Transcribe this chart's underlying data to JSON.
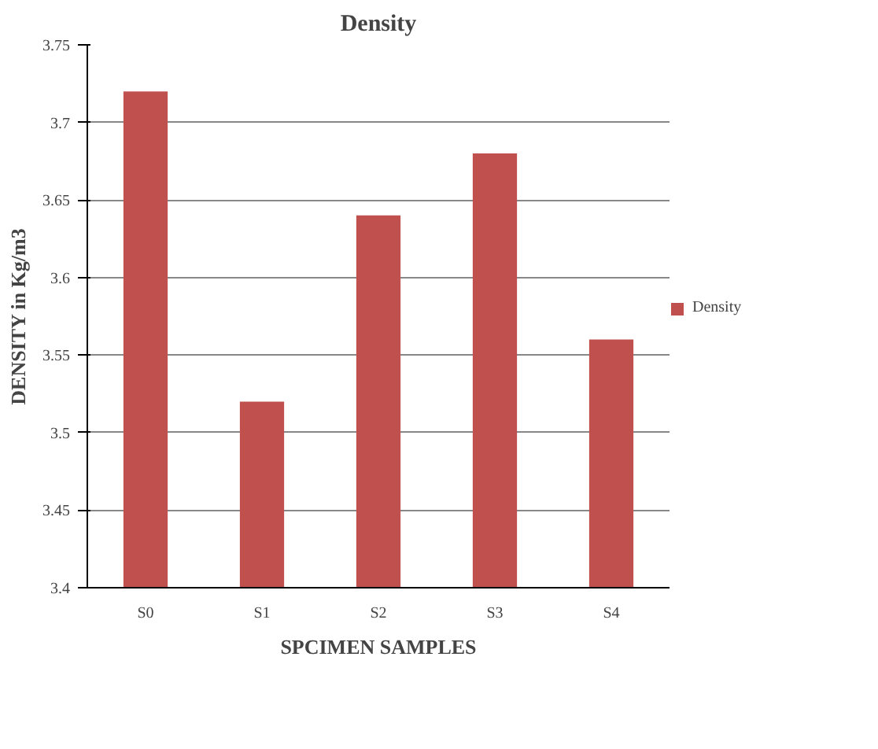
{
  "chart_data": {
    "type": "bar",
    "title": "Density",
    "xlabel": "SPCIMEN SAMPLES",
    "ylabel": "DENSITY in Kg/m3",
    "categories": [
      "S0",
      "S1",
      "S2",
      "S3",
      "S4"
    ],
    "series": [
      {
        "name": "Density",
        "color": "#c0504d",
        "values": [
          3.72,
          3.52,
          3.64,
          3.68,
          3.56
        ]
      }
    ],
    "ylim": [
      3.4,
      3.75
    ],
    "yticks": [
      3.4,
      3.45,
      3.5,
      3.55,
      3.6,
      3.65,
      3.7,
      3.75
    ],
    "grid": "y",
    "legend": "right"
  }
}
